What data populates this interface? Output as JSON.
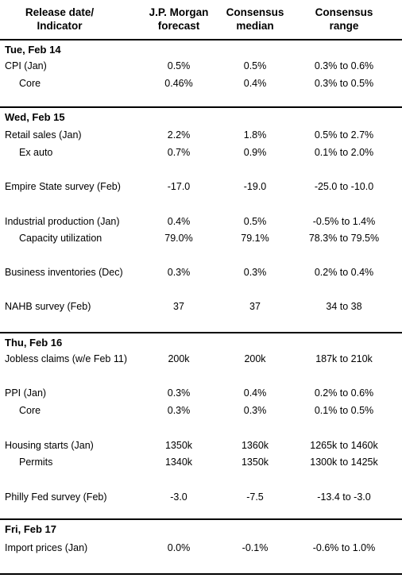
{
  "header": {
    "col0": [
      "Release date/",
      "Indicator"
    ],
    "col1": [
      "J.P. Morgan",
      "forecast"
    ],
    "col2": [
      "Consensus",
      "median"
    ],
    "col3": [
      "Consensus",
      "range"
    ]
  },
  "sections": [
    {
      "title": "Tue, Feb 14",
      "rows": [
        {
          "label": "CPI (Jan)",
          "jpm": "0.5%",
          "median": "0.5%",
          "range": "0.3% to 0.6%"
        },
        {
          "label": "Core",
          "jpm": "0.46%",
          "median": "0.4%",
          "range": "0.3% to 0.5%"
        }
      ]
    },
    {
      "title": "Wed, Feb 15",
      "rows": [
        {
          "label": "Retail sales (Jan)",
          "jpm": "2.2%",
          "median": "1.8%",
          "range": "0.5% to 2.7%"
        },
        {
          "label": "Ex auto",
          "jpm": "0.7%",
          "median": "0.9%",
          "range": "0.1% to 2.0%"
        },
        {
          "label": "Empire State survey (Feb)",
          "jpm": "-17.0",
          "median": "-19.0",
          "range": "-25.0 to -10.0"
        },
        {
          "label": "Industrial production (Jan)",
          "jpm": "0.4%",
          "median": "0.5%",
          "range": "-0.5% to 1.4%"
        },
        {
          "label": "Capacity utilization",
          "jpm": "79.0%",
          "median": "79.1%",
          "range": "78.3% to 79.5%"
        },
        {
          "label": "Business inventories (Dec)",
          "jpm": "0.3%",
          "median": "0.3%",
          "range": "0.2% to 0.4%"
        },
        {
          "label": "NAHB survey (Feb)",
          "jpm": "37",
          "median": "37",
          "range": "34 to 38"
        }
      ]
    },
    {
      "title": "Thu, Feb 16",
      "rows": [
        {
          "label": "Jobless claims (w/e Feb 11)",
          "jpm": "200k",
          "median": "200k",
          "range": "187k to 210k"
        },
        {
          "label": "PPI (Jan)",
          "jpm": "0.3%",
          "median": "0.4%",
          "range": "0.2% to 0.6%"
        },
        {
          "label": "Core",
          "jpm": "0.3%",
          "median": "0.3%",
          "range": "0.1% to 0.5%"
        },
        {
          "label": "Housing starts (Jan)",
          "jpm": "1350k",
          "median": "1360k",
          "range": "1265k to 1460k"
        },
        {
          "label": "Permits",
          "jpm": "1340k",
          "median": "1350k",
          "range": "1300k to 1425k"
        },
        {
          "label": "Philly Fed survey (Feb)",
          "jpm": "-3.0",
          "median": "-7.5",
          "range": "-13.4 to -3.0"
        }
      ]
    },
    {
      "title": "Fri, Feb 17",
      "rows": [
        {
          "label": "Import prices (Jan)",
          "jpm": "0.0%",
          "median": "-0.1%",
          "range": "-0.6% to 1.0%"
        }
      ]
    }
  ]
}
